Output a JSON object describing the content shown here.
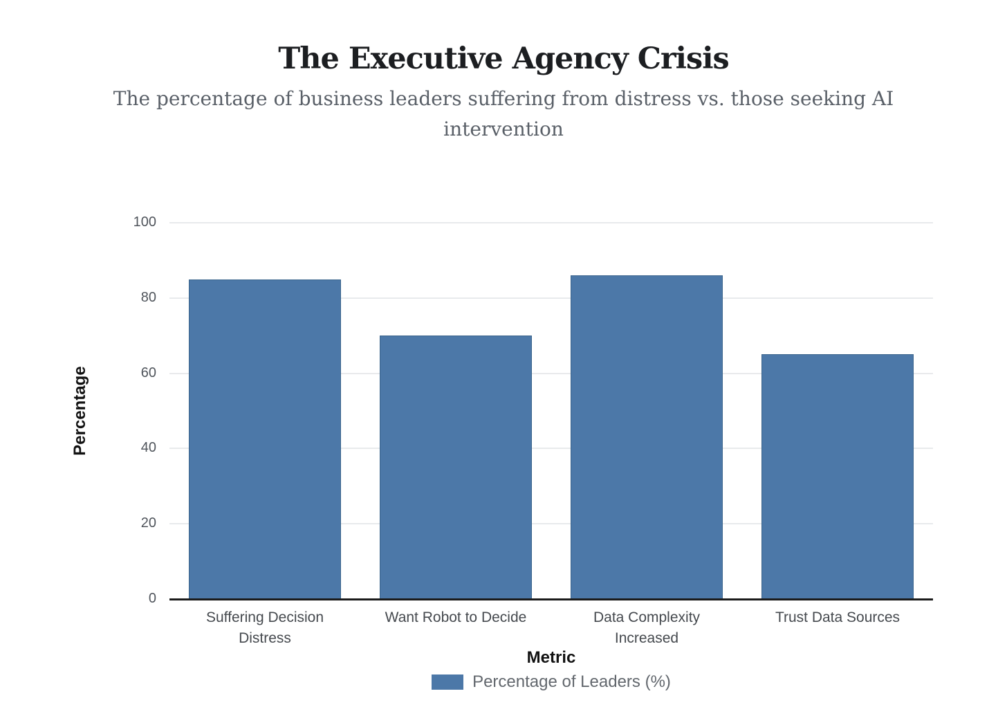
{
  "chart_data": {
    "type": "bar",
    "title": "The Executive Agency Crisis",
    "subtitle": "The percentage of business leaders suffering from distress vs. those seeking AI intervention",
    "categories": [
      "Suffering Decision Distress",
      "Want Robot to Decide",
      "Data Complexity Increased",
      "Trust Data Sources"
    ],
    "values": [
      85,
      70,
      86,
      65
    ],
    "series_name": "Percentage of Leaders (%)",
    "xlabel": "Metric",
    "ylabel": "Percentage",
    "ylim": [
      0,
      100
    ],
    "yticks": [
      0,
      20,
      40,
      60,
      80,
      100
    ],
    "grid": true,
    "legend_position": "bottom",
    "colors": {
      "bar_fill": "#4c78a8",
      "bar_stroke": "#3a648c",
      "gridline": "#e8eaec",
      "axis_line": "#1b1b1b",
      "title_text": "#1c1e21",
      "subtitle_text": "#5a6068",
      "tick_text": "#50555c",
      "label_text": "#45494e",
      "legend_text": "#62676d"
    }
  }
}
